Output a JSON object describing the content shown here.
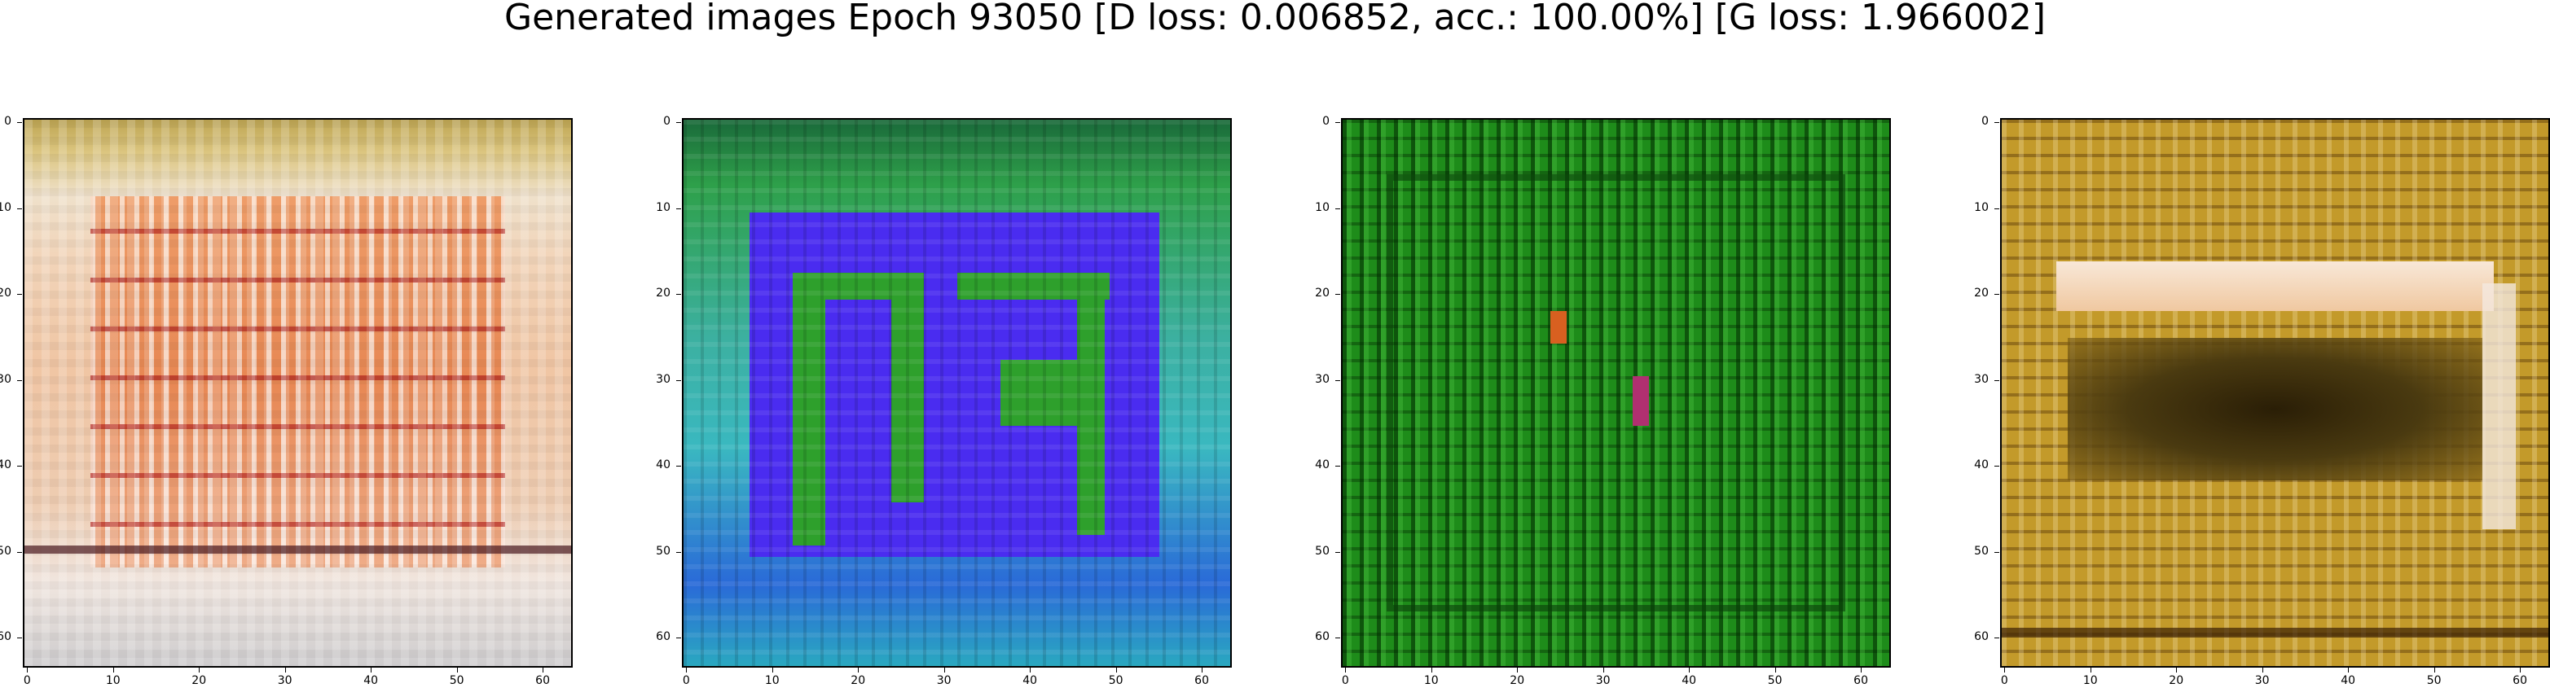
{
  "title": "Generated images Epoch 93050 [D loss: 0.006852, acc.: 100.00%] [G loss: 1.966002]",
  "axes": {
    "x_ticks": [
      "0",
      "10",
      "20",
      "30",
      "40",
      "50",
      "60"
    ],
    "y_ticks": [
      "0",
      "10",
      "20",
      "30",
      "40",
      "50",
      "60"
    ]
  },
  "panels": [
    {
      "name": "sample-1",
      "dominant_colors": [
        "#f3d6c0",
        "#e8a06a",
        "#c0281e",
        "#ffffff",
        "#a2b7c8"
      ]
    },
    {
      "name": "sample-2",
      "dominant_colors": [
        "#4a2cf0",
        "#2ea02c",
        "#28b6b4",
        "#0f5a2a"
      ]
    },
    {
      "name": "sample-3",
      "dominant_colors": [
        "#1e8c1a",
        "#0a4a0a",
        "#3fbf3a",
        "#d86020"
      ]
    },
    {
      "name": "sample-4",
      "dominant_colors": [
        "#c39a2a",
        "#3a2a08",
        "#f4e0c8",
        "#8a6a10"
      ]
    }
  ]
}
